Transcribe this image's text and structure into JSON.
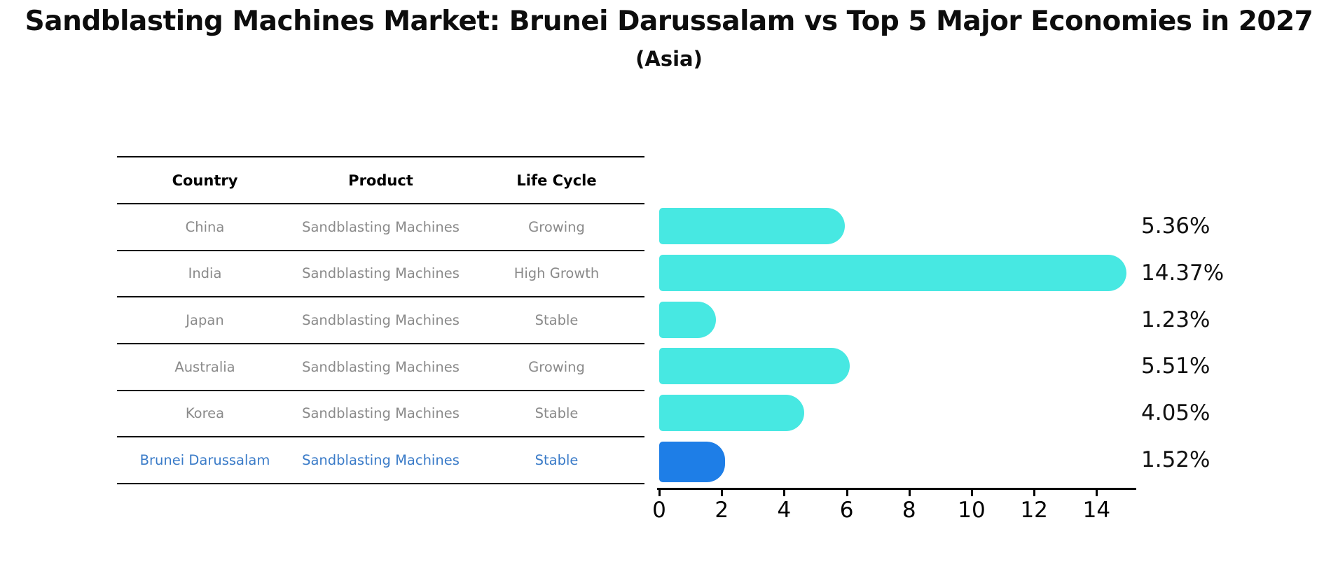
{
  "title": "Sandblasting Machines Market: Brunei Darussalam vs Top 5 Major Economies in 2027",
  "subtitle": "(Asia)",
  "table": {
    "headers": [
      "Country",
      "Product",
      "Life Cycle"
    ],
    "rows": [
      {
        "country": "China",
        "product": "Sandblasting Machines",
        "life_cycle": "Growing",
        "highlight": false
      },
      {
        "country": "India",
        "product": "Sandblasting Machines",
        "life_cycle": "High Growth",
        "highlight": false
      },
      {
        "country": "Japan",
        "product": "Sandblasting Machines",
        "life_cycle": "Stable",
        "highlight": false
      },
      {
        "country": "Australia",
        "product": "Sandblasting Machines",
        "life_cycle": "Growing",
        "highlight": false
      },
      {
        "country": "Korea",
        "product": "Sandblasting Machines",
        "life_cycle": "Stable",
        "highlight": false
      },
      {
        "country": "Brunei Darussalam",
        "product": "Sandblasting Machines",
        "life_cycle": "Stable",
        "highlight": true
      }
    ]
  },
  "chart_data": {
    "type": "bar",
    "orientation": "horizontal",
    "title": "Sandblasting Machines Market: Brunei Darussalam vs Top 5 Major Economies in 2027",
    "subtitle": "(Asia)",
    "categories": [
      "China",
      "India",
      "Japan",
      "Australia",
      "Korea",
      "Brunei Darussalam"
    ],
    "values": [
      5.36,
      14.37,
      1.23,
      5.51,
      4.05,
      1.52
    ],
    "value_labels": [
      "5.36%",
      "14.37%",
      "1.23%",
      "5.51%",
      "4.05%",
      "1.52%"
    ],
    "xlabel": "",
    "ylabel": "",
    "xlim": [
      0,
      15.3
    ],
    "x_ticks": [
      0,
      2,
      4,
      6,
      8,
      10,
      12,
      14
    ],
    "grid": false,
    "legend": "none",
    "bar_color": "#47E8E2",
    "highlight_color": "#1E7EE7",
    "highlight_index": 5,
    "text_color_highlight": "#3a7bc8",
    "table_text_color": "#8a8a8a"
  }
}
